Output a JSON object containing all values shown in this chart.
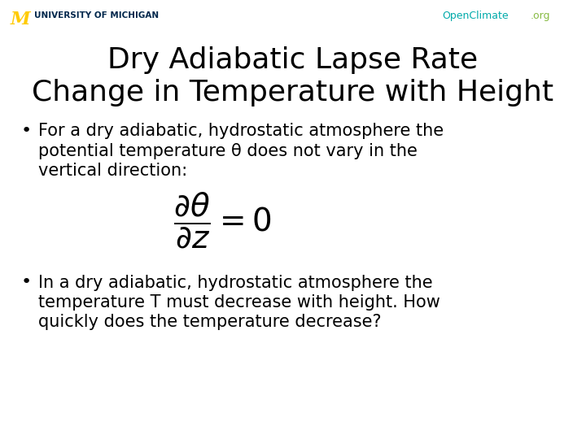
{
  "title_line1": "Dry Adiabatic Lapse Rate",
  "title_line2": "Change in Temperature with Height",
  "title_fontsize": 26,
  "title_color": "#000000",
  "background_color": "#ffffff",
  "bullet1_line1": "For a dry adiabatic, hydrostatic atmosphere the",
  "bullet1_line2": "potential temperature θ does not vary in the",
  "bullet1_line3": "vertical direction:",
  "bullet2_line1": "In a dry adiabatic, hydrostatic atmosphere the",
  "bullet2_line2": "temperature T must decrease with height. How",
  "bullet2_line3": "quickly does the temperature decrease?",
  "bullet_fontsize": 15,
  "bullet_color": "#000000",
  "equation_fontsize": 28,
  "univ_color_M": "#FFCB05",
  "univ_color_text": "#00274C",
  "openclimate_color1": "#00AAAA",
  "openclimate_color2": "#88BB44"
}
